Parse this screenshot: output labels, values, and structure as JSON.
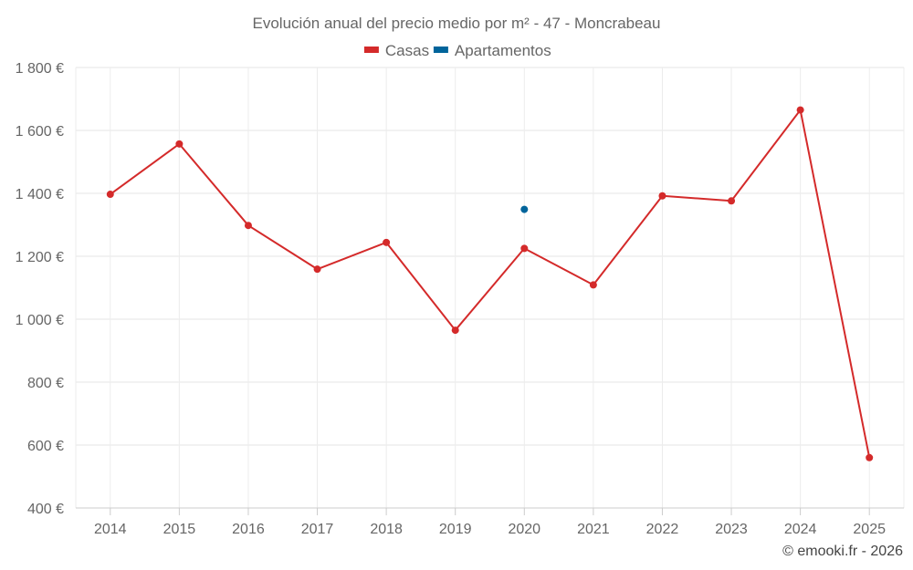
{
  "chart_data": {
    "type": "line",
    "title": "Evolución anual del precio medio por m² - 47 - Moncrabeau",
    "categories": [
      "2014",
      "2015",
      "2016",
      "2017",
      "2018",
      "2019",
      "2020",
      "2021",
      "2022",
      "2023",
      "2024",
      "2025"
    ],
    "series": [
      {
        "name": "Casas",
        "color": "#d42a2a",
        "values": [
          1397,
          1557,
          1298,
          1159,
          1244,
          965,
          1225,
          1109,
          1392,
          1376,
          1665,
          560
        ]
      },
      {
        "name": "Apartamentos",
        "color": "#00649b",
        "values": [
          null,
          null,
          null,
          null,
          null,
          null,
          1349,
          null,
          null,
          null,
          null,
          null
        ]
      }
    ],
    "y_ticks": [
      400,
      600,
      800,
      1000,
      1200,
      1400,
      1600,
      1800
    ],
    "y_tick_labels": [
      "400 €",
      "600 €",
      "800 €",
      "1 000 €",
      "1 200 €",
      "1 400 €",
      "1 600 €",
      "1 800 €"
    ],
    "ylim": [
      400,
      1800
    ],
    "xlabel": "",
    "ylabel": "",
    "grid": true,
    "legend_position": "top-center"
  },
  "credit": "© emooki.fr - 2026"
}
